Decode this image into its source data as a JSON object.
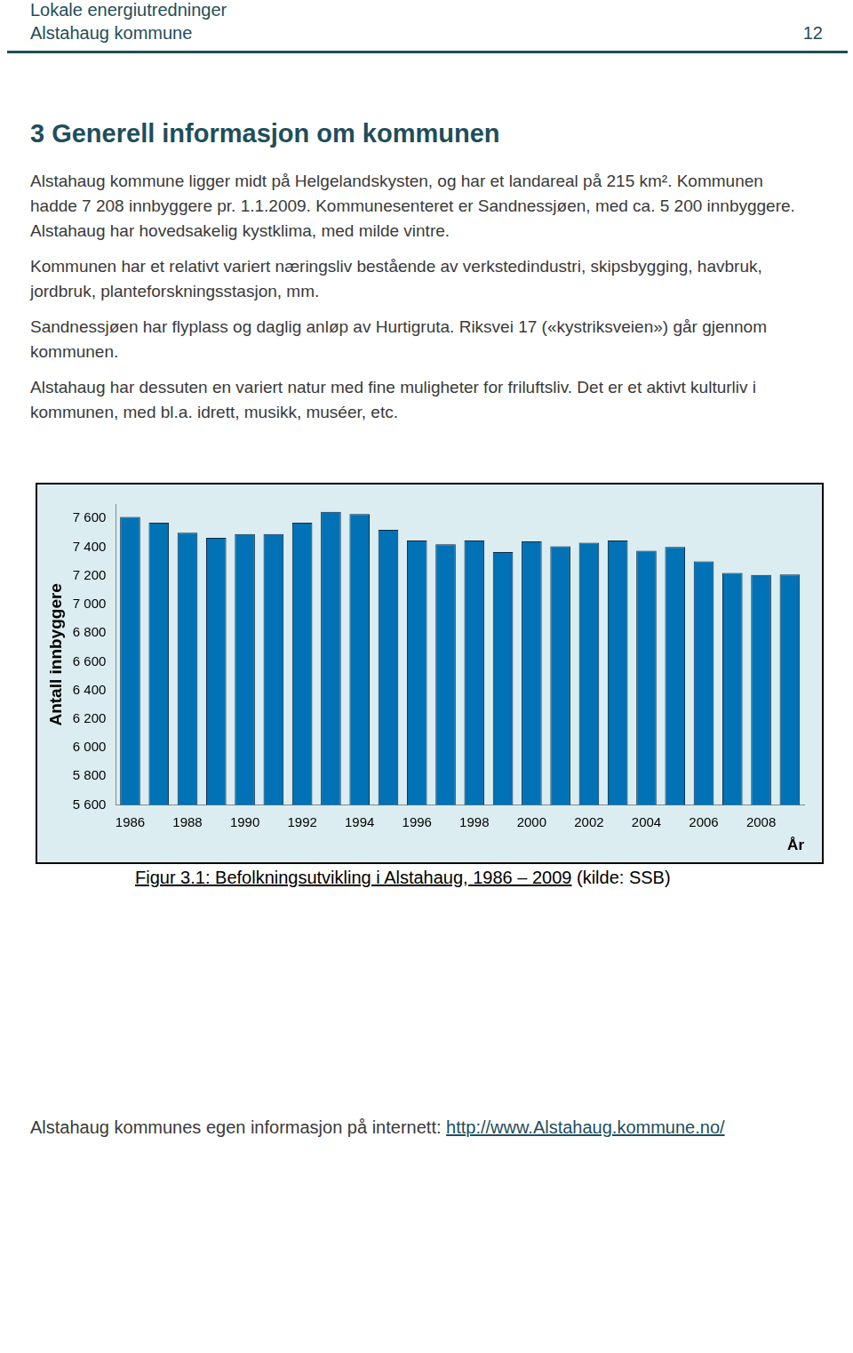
{
  "header": {
    "title": "Lokale energiutredninger",
    "subtitle": "Alstahaug kommune",
    "page": "12"
  },
  "section": {
    "heading": "3 Generell informasjon om kommunen",
    "paragraphs": [
      "Alstahaug kommune ligger midt på Helgelandskysten, og har et landareal på 215 km². Kommunen hadde 7 208 innbyggere pr. 1.1.2009. Kommunesenteret er Sandnessjøen, med ca. 5 200 innbyggere. Alstahaug har hovedsakelig kystklima, med milde vintre.",
      "Kommunen har et relativt variert næringsliv bestående av verkstedindustri, skipsbygging, havbruk, jordbruk, planteforskningsstasjon, mm.",
      "Sandnessjøen har flyplass og daglig anløp av Hurtigruta. Riksvei 17 («kystriksveien») går gjennom kommunen.",
      "Alstahaug har dessuten en variert natur med fine muligheter for friluftsliv. Det er et aktivt kulturliv i kommunen, med bl.a. idrett, musikk, muséer, etc."
    ]
  },
  "chart_data": {
    "type": "bar",
    "xlabel": "År",
    "ylabel": "Antall innbyggere",
    "categories": [
      "1986",
      null,
      "1988",
      null,
      "1990",
      null,
      "1992",
      null,
      "1994",
      null,
      "1996",
      null,
      "1998",
      null,
      "2000",
      null,
      "2002",
      null,
      "2004",
      null,
      "2006",
      null,
      "2008",
      null
    ],
    "values": [
      7610,
      7570,
      7500,
      7465,
      7490,
      7490,
      7570,
      7645,
      7630,
      7520,
      7445,
      7420,
      7445,
      7365,
      7440,
      7405,
      7430,
      7445,
      7375,
      7400,
      7300,
      7220,
      7205,
      7208
    ],
    "color": "#0072b5",
    "ylim": [
      5600,
      7700
    ],
    "yticks": [
      {
        "value": 5600,
        "label": "5 600"
      },
      {
        "value": 5800,
        "label": "5 800"
      },
      {
        "value": 6000,
        "label": "6 000"
      },
      {
        "value": 6200,
        "label": "6 200"
      },
      {
        "value": 6400,
        "label": "6 400"
      },
      {
        "value": 6600,
        "label": "6 600"
      },
      {
        "value": 6800,
        "label": "6 800"
      },
      {
        "value": 7000,
        "label": "7 000"
      },
      {
        "value": 7200,
        "label": "7 200"
      },
      {
        "value": 7400,
        "label": "7 400"
      },
      {
        "value": 7600,
        "label": "7 600"
      }
    ],
    "grid": false
  },
  "caption": {
    "title": "Figur 3.1: Befolkningsutvikling i Alstahaug, 1986 – 2009",
    "source": "(kilde: SSB)"
  },
  "footer": {
    "text": "Alstahaug kommunes egen informasjon på internett:",
    "link": "http://www.Alstahaug.kommune.no/"
  }
}
